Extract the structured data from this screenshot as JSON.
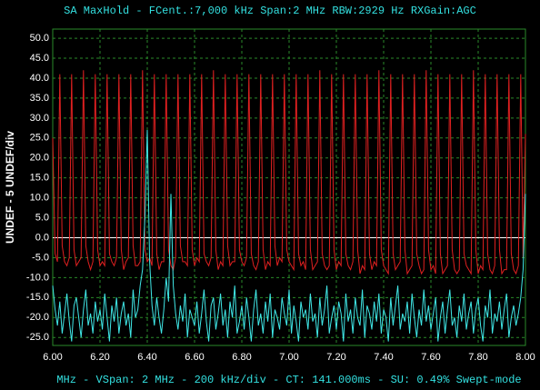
{
  "chart_data": {
    "type": "line",
    "title": "SA MaxHold - FCent.:7,000 kHz Span:2 MHz RBW:2929 Hz RXGain:AGC",
    "x_label": "MHz - VSpan: 2 MHz - 200 kHz/div - CT: 141.000ms - SU: 0.49% Swept-mode",
    "y_label": "UNDEF - 5 UNDEF/div",
    "xlim": [
      6,
      8
    ],
    "ylim": [
      -27,
      52.3
    ],
    "xticks": [
      {
        "value": 6,
        "label": "6.00"
      },
      {
        "value": 6.2,
        "label": "6.20"
      },
      {
        "value": 6.4,
        "label": "6.40"
      },
      {
        "value": 6.6,
        "label": "6.60"
      },
      {
        "value": 6.8,
        "label": "6.80"
      },
      {
        "value": 7,
        "label": "7.00"
      },
      {
        "value": 7.2,
        "label": "7.20"
      },
      {
        "value": 7.4,
        "label": "7.40"
      },
      {
        "value": 7.6,
        "label": "7.60"
      },
      {
        "value": 7.8,
        "label": "7.80"
      },
      {
        "value": 8,
        "label": "8.00"
      }
    ],
    "yticks": [
      {
        "value": 50,
        "label": "50.0"
      },
      {
        "value": 45,
        "label": "45.0"
      },
      {
        "value": 40,
        "label": "40.0"
      },
      {
        "value": 35,
        "label": "35.0"
      },
      {
        "value": 30,
        "label": "30.0"
      },
      {
        "value": 25,
        "label": "25.0"
      },
      {
        "value": 20,
        "label": "20.0"
      },
      {
        "value": 15,
        "label": "15.0"
      },
      {
        "value": 10,
        "label": "10.0"
      },
      {
        "value": 5,
        "label": "5.0"
      },
      {
        "value": 0,
        "label": "0.0"
      },
      {
        "value": -5,
        "label": "-5.0"
      },
      {
        "value": -10,
        "label": "-10.0"
      },
      {
        "value": -15,
        "label": "-15.0"
      },
      {
        "value": -20,
        "label": "-20.0"
      },
      {
        "value": -25,
        "label": "-25.0"
      }
    ],
    "grid": true,
    "x": [
      6,
      6.01,
      6.02,
      6.03,
      6.04,
      6.05,
      6.06,
      6.07,
      6.08,
      6.09,
      6.1,
      6.11,
      6.12,
      6.13,
      6.14,
      6.15,
      6.16,
      6.17,
      6.18,
      6.19,
      6.2,
      6.21,
      6.22,
      6.23,
      6.24,
      6.25,
      6.26,
      6.27,
      6.28,
      6.29,
      6.3,
      6.31,
      6.32,
      6.33,
      6.34,
      6.35,
      6.36,
      6.37,
      6.38,
      6.39,
      6.4,
      6.41,
      6.42,
      6.43,
      6.44,
      6.45,
      6.46,
      6.47,
      6.48,
      6.49,
      6.5,
      6.51,
      6.52,
      6.53,
      6.54,
      6.55,
      6.56,
      6.57,
      6.58,
      6.59,
      6.6,
      6.61,
      6.62,
      6.63,
      6.64,
      6.65,
      6.66,
      6.67,
      6.68,
      6.69,
      6.7,
      6.71,
      6.72,
      6.73,
      6.74,
      6.75,
      6.76,
      6.77,
      6.78,
      6.79,
      6.8,
      6.81,
      6.82,
      6.83,
      6.84,
      6.85,
      6.86,
      6.87,
      6.88,
      6.89,
      6.9,
      6.91,
      6.92,
      6.93,
      6.94,
      6.95,
      6.96,
      6.97,
      6.98,
      6.99,
      7,
      7.01,
      7.02,
      7.03,
      7.04,
      7.05,
      7.06,
      7.07,
      7.08,
      7.09,
      7.1,
      7.11,
      7.12,
      7.13,
      7.14,
      7.15,
      7.16,
      7.17,
      7.18,
      7.19,
      7.2,
      7.21,
      7.22,
      7.23,
      7.24,
      7.25,
      7.26,
      7.27,
      7.28,
      7.29,
      7.3,
      7.31,
      7.32,
      7.33,
      7.34,
      7.35,
      7.36,
      7.37,
      7.38,
      7.39,
      7.4,
      7.41,
      7.42,
      7.43,
      7.44,
      7.45,
      7.46,
      7.47,
      7.48,
      7.49,
      7.5,
      7.51,
      7.52,
      7.53,
      7.54,
      7.55,
      7.56,
      7.57,
      7.58,
      7.59,
      7.6,
      7.61,
      7.62,
      7.63,
      7.64,
      7.65,
      7.66,
      7.67,
      7.68,
      7.69,
      7.7,
      7.71,
      7.72,
      7.73,
      7.74,
      7.75,
      7.76,
      7.77,
      7.78,
      7.79,
      7.8,
      7.81,
      7.82,
      7.83,
      7.84,
      7.85,
      7.86,
      7.87,
      7.88,
      7.89,
      7.9,
      7.91,
      7.92,
      7.93,
      7.94,
      7.95,
      7.96,
      7.97,
      7.98,
      7.99,
      8
    ],
    "series": [
      {
        "color": "#e02020",
        "values": [
          25,
          -4,
          -6,
          41,
          -2,
          -6,
          -7,
          -5,
          41,
          -3,
          -7,
          -6,
          -5,
          42,
          -2,
          -6,
          -8,
          -6,
          41,
          -3,
          -7,
          -6,
          -7,
          41,
          -4,
          -6,
          -7,
          -5,
          41,
          -3,
          -8,
          -6,
          -5,
          41,
          -2,
          -7,
          -7,
          -6,
          42,
          -3,
          -6,
          -5,
          -7,
          41,
          -4,
          -8,
          -6,
          -6,
          41,
          -3,
          -7,
          -8,
          -5,
          41,
          -2,
          -6,
          -6,
          -7,
          41,
          -3,
          -7,
          -5,
          -6,
          41,
          -4,
          -6,
          -7,
          -5,
          42,
          -3,
          -8,
          -6,
          -7,
          41,
          -2,
          -7,
          -6,
          -6,
          41,
          -3,
          -6,
          -7,
          -5,
          41,
          -4,
          -7,
          -8,
          -6,
          41,
          -3,
          -8,
          -6,
          -7,
          41,
          -2,
          -7,
          -5,
          -6,
          41,
          -3,
          -6,
          -7,
          -8,
          41,
          -4,
          -7,
          -6,
          -8,
          41,
          -3,
          -8,
          -7,
          -6,
          42,
          -4,
          -7,
          -8,
          -7,
          41,
          -3,
          -8,
          -6,
          -7,
          41,
          -4,
          -7,
          -8,
          -6,
          41,
          -3,
          -9,
          -7,
          -8,
          41,
          -4,
          -8,
          -6,
          -7,
          42,
          -3,
          -7,
          -8,
          -9,
          41,
          -4,
          -8,
          -7,
          -6,
          41,
          -3,
          -9,
          -8,
          -7,
          41,
          -4,
          -7,
          -9,
          -8,
          42,
          -3,
          -8,
          -7,
          -9,
          41,
          -4,
          -9,
          -8,
          -7,
          41,
          -3,
          -8,
          -9,
          -8,
          41,
          -4,
          -7,
          -8,
          -9,
          42,
          -3,
          -9,
          -7,
          -8,
          41,
          -4,
          -8,
          -9,
          -7,
          41,
          -3,
          -9,
          -8,
          -8,
          41,
          -4,
          -8,
          -9,
          -7,
          41,
          -5,
          26
        ]
      },
      {
        "color": "#40e8e8",
        "values": [
          -12,
          -18,
          -22,
          -16,
          -24,
          -19,
          -14,
          -21,
          -26,
          -17,
          -15,
          -20,
          -25,
          -18,
          -13,
          -22,
          -19,
          -24,
          -16,
          -21,
          -18,
          -23,
          -14,
          -20,
          -26,
          -17,
          -21,
          -15,
          -24,
          -19,
          -16,
          -22,
          -19,
          -25,
          -13,
          -20,
          -18,
          -12,
          -8,
          5,
          27,
          -6,
          -17,
          -22,
          -15,
          -20,
          -24,
          -18,
          -10,
          -16,
          11,
          -12,
          -19,
          -23,
          -17,
          -21,
          -14,
          -25,
          -18,
          -20,
          -22,
          -16,
          -24,
          -19,
          -13,
          -21,
          -26,
          -17,
          -15,
          -23,
          -19,
          -14,
          -22,
          -18,
          -25,
          -16,
          -20,
          -12,
          -24,
          -21,
          -17,
          -23,
          -15,
          -20,
          -26,
          -18,
          -13,
          -22,
          -19,
          -24,
          -16,
          -21,
          -14,
          -25,
          -18,
          -20,
          -23,
          -15,
          -19,
          -22,
          -13,
          -24,
          -17,
          -21,
          -26,
          -16,
          -20,
          -18,
          -23,
          -14,
          -21,
          -19,
          -25,
          -15,
          -22,
          -18,
          -12,
          -24,
          -20,
          -17,
          -23,
          -16,
          -19,
          -26,
          -14,
          -21,
          -18,
          -24,
          -15,
          -20,
          -22,
          -13,
          -25,
          -17,
          -19,
          -23,
          -16,
          -21,
          -14,
          -24,
          -18,
          -20,
          -26,
          -15,
          -22,
          -17,
          -12,
          -23,
          -19,
          -21,
          -16,
          -24,
          -14,
          -20,
          -25,
          -18,
          -22,
          -13,
          -21,
          -17,
          -23,
          -19,
          -15,
          -26,
          -20,
          -16,
          -24,
          -18,
          -13,
          -22,
          -20,
          -25,
          -17,
          -21,
          -14,
          -23,
          -19,
          -16,
          -24,
          -18,
          -15,
          -22,
          -26,
          -17,
          -20,
          -13,
          -24,
          -19,
          -21,
          -16,
          -23,
          -18,
          -14,
          -25,
          -20,
          -17,
          -22,
          -19,
          -15,
          -8,
          11
        ]
      }
    ]
  }
}
